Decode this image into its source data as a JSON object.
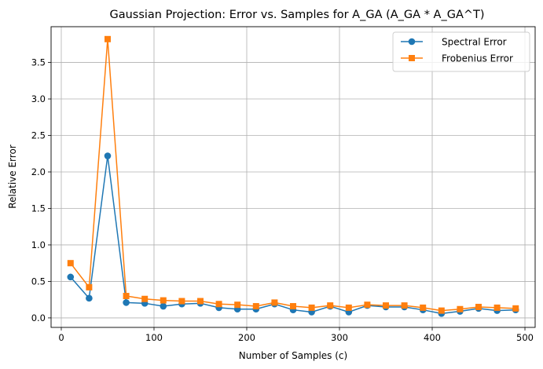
{
  "chart_data": {
    "type": "line",
    "title": "Gaussian Projection: Error vs. Samples for A_GA (A_GA * A_GA^T)",
    "xlabel": "Number of Samples (c)",
    "ylabel": "Relative Error",
    "xlim": [
      -11,
      511
    ],
    "ylim": [
      -0.13,
      3.99
    ],
    "xticks": [
      0,
      100,
      200,
      300,
      400,
      500
    ],
    "yticks": [
      0.0,
      0.5,
      1.0,
      1.5,
      2.0,
      2.5,
      3.0,
      3.5
    ],
    "grid": true,
    "legend_position": "top-right",
    "x": [
      10,
      30,
      50,
      70,
      90,
      110,
      130,
      150,
      170,
      190,
      210,
      230,
      250,
      270,
      290,
      310,
      330,
      350,
      370,
      390,
      410,
      430,
      450,
      470,
      490
    ],
    "series": [
      {
        "name": "Spectral Error",
        "color": "#1f77b4",
        "marker": "circle",
        "values": [
          0.56,
          0.27,
          2.22,
          0.21,
          0.2,
          0.16,
          0.19,
          0.2,
          0.14,
          0.12,
          0.12,
          0.19,
          0.11,
          0.08,
          0.16,
          0.08,
          0.17,
          0.15,
          0.15,
          0.11,
          0.06,
          0.09,
          0.13,
          0.1,
          0.11
        ]
      },
      {
        "name": "Frobenius Error",
        "color": "#ff7f0e",
        "marker": "square",
        "values": [
          0.75,
          0.42,
          3.82,
          0.3,
          0.26,
          0.24,
          0.23,
          0.23,
          0.19,
          0.18,
          0.16,
          0.21,
          0.16,
          0.14,
          0.17,
          0.14,
          0.18,
          0.17,
          0.17,
          0.14,
          0.1,
          0.12,
          0.15,
          0.14,
          0.13
        ]
      }
    ]
  }
}
